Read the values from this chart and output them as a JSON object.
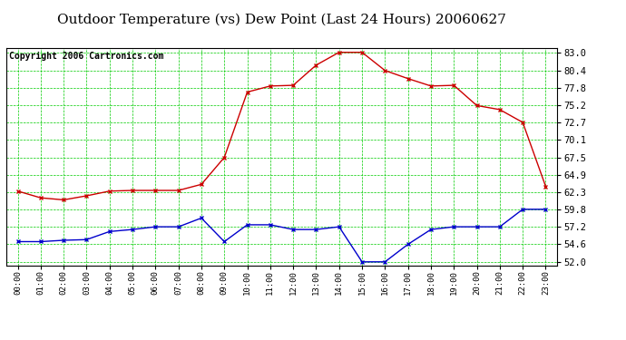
{
  "title": "Outdoor Temperature (vs) Dew Point (Last 24 Hours) 20060627",
  "copyright": "Copyright 2006 Cartronics.com",
  "x_labels": [
    "00:00",
    "01:00",
    "02:00",
    "03:00",
    "04:00",
    "05:00",
    "06:00",
    "07:00",
    "08:00",
    "09:00",
    "10:00",
    "11:00",
    "12:00",
    "13:00",
    "14:00",
    "15:00",
    "16:00",
    "17:00",
    "18:00",
    "19:00",
    "20:00",
    "21:00",
    "22:00",
    "23:00"
  ],
  "y_ticks": [
    52.0,
    54.6,
    57.2,
    59.8,
    62.3,
    64.9,
    67.5,
    70.1,
    72.7,
    75.2,
    77.8,
    80.4,
    83.0
  ],
  "ylim": [
    51.5,
    83.8
  ],
  "temp_data": [
    62.5,
    61.5,
    61.2,
    61.8,
    62.5,
    62.6,
    62.6,
    62.6,
    63.5,
    67.5,
    77.2,
    78.1,
    78.2,
    81.2,
    83.1,
    83.1,
    80.4,
    79.2,
    78.1,
    78.2,
    75.2,
    74.6,
    72.7,
    63.2
  ],
  "dew_data": [
    55.0,
    55.0,
    55.2,
    55.3,
    56.5,
    56.8,
    57.2,
    57.2,
    58.5,
    55.0,
    57.5,
    57.5,
    56.8,
    56.8,
    57.2,
    52.0,
    52.0,
    54.6,
    56.8,
    57.2,
    57.2,
    57.2,
    59.8,
    59.8
  ],
  "temp_color": "#cc0000",
  "dew_color": "#0000cc",
  "bg_color": "#ffffff",
  "grid_color": "#00cc00",
  "title_fontsize": 11,
  "copyright_fontsize": 7
}
